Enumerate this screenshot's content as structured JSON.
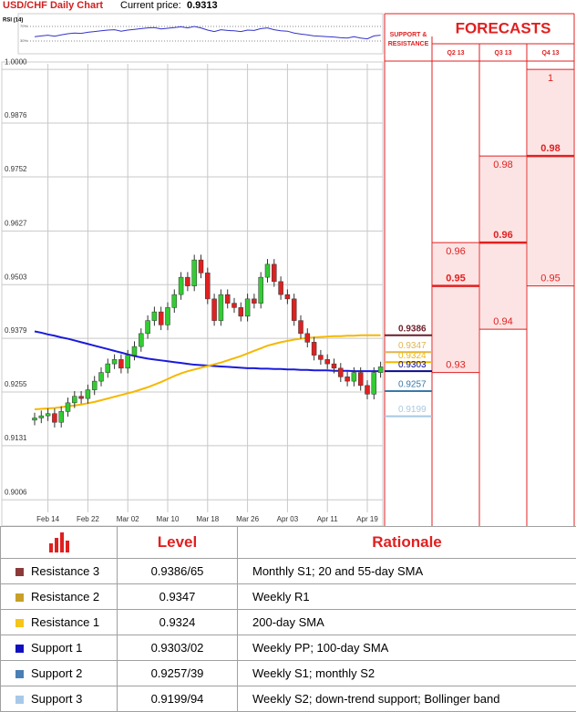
{
  "header": {
    "title": "USD/CHF Daily Chart",
    "price_label": "Current price:",
    "price": "0.9313"
  },
  "chart_data": [
    {
      "type": "candlestick",
      "categories": [
        null,
        null,
        "Feb 14",
        null,
        null,
        null,
        null,
        null,
        "Feb 22",
        null,
        null,
        null,
        null,
        null,
        "Mar 02",
        null,
        null,
        null,
        null,
        null,
        "Mar 10",
        null,
        null,
        null,
        null,
        null,
        "Mar 18",
        null,
        null,
        null,
        null,
        null,
        "Mar 26",
        null,
        null,
        null,
        null,
        null,
        "Apr 03",
        null,
        null,
        null,
        null,
        null,
        "Apr 11",
        null,
        null,
        null,
        null,
        null,
        "Apr 19",
        null,
        null
      ],
      "open": [
        0.919,
        0.9195,
        0.92,
        0.9205,
        0.9185,
        0.921,
        0.923,
        0.9245,
        0.924,
        0.926,
        0.928,
        0.93,
        0.932,
        0.933,
        0.931,
        0.934,
        0.936,
        0.939,
        0.942,
        0.944,
        0.941,
        0.945,
        0.948,
        0.952,
        0.95,
        0.956,
        0.953,
        0.947,
        0.942,
        0.948,
        0.946,
        0.945,
        0.943,
        0.947,
        0.946,
        0.952,
        0.955,
        0.951,
        0.948,
        0.947,
        0.942,
        0.939,
        0.937,
        0.934,
        0.933,
        0.932,
        0.931,
        0.929,
        0.928,
        0.93,
        0.927,
        0.925,
        0.93
      ],
      "high": [
        0.9207,
        0.9212,
        0.9217,
        0.9217,
        0.9222,
        0.9242,
        0.9257,
        0.9257,
        0.9272,
        0.9292,
        0.9312,
        0.9332,
        0.9342,
        0.9342,
        0.9352,
        0.9372,
        0.9402,
        0.9432,
        0.9452,
        0.9452,
        0.9462,
        0.9492,
        0.9532,
        0.9532,
        0.9572,
        0.9572,
        0.9542,
        0.9482,
        0.9492,
        0.9492,
        0.9472,
        0.9462,
        0.9482,
        0.9482,
        0.9532,
        0.9562,
        0.9562,
        0.9522,
        0.9492,
        0.9482,
        0.9432,
        0.9402,
        0.9382,
        0.9352,
        0.9342,
        0.9332,
        0.9322,
        0.9302,
        0.9312,
        0.9312,
        0.9282,
        0.9312,
        0.9325
      ],
      "low": [
        0.9178,
        0.9183,
        0.9188,
        0.9173,
        0.9173,
        0.9198,
        0.9218,
        0.9228,
        0.9228,
        0.9248,
        0.9268,
        0.9288,
        0.9308,
        0.9298,
        0.9298,
        0.9328,
        0.9348,
        0.9378,
        0.9408,
        0.9398,
        0.9398,
        0.9438,
        0.9468,
        0.9488,
        0.9488,
        0.9518,
        0.9458,
        0.9408,
        0.9408,
        0.9448,
        0.9438,
        0.9418,
        0.9418,
        0.9448,
        0.9448,
        0.9508,
        0.9498,
        0.9468,
        0.9458,
        0.9408,
        0.9378,
        0.9358,
        0.9328,
        0.9318,
        0.9308,
        0.9298,
        0.9278,
        0.9268,
        0.9268,
        0.9258,
        0.9238,
        0.9238,
        0.9288
      ],
      "close": [
        0.9195,
        0.92,
        0.9205,
        0.9185,
        0.921,
        0.923,
        0.9245,
        0.924,
        0.926,
        0.928,
        0.93,
        0.932,
        0.933,
        0.931,
        0.934,
        0.936,
        0.939,
        0.942,
        0.944,
        0.941,
        0.945,
        0.948,
        0.952,
        0.95,
        0.956,
        0.953,
        0.947,
        0.942,
        0.948,
        0.946,
        0.945,
        0.943,
        0.947,
        0.946,
        0.952,
        0.955,
        0.951,
        0.948,
        0.947,
        0.942,
        0.939,
        0.937,
        0.934,
        0.933,
        0.932,
        0.931,
        0.929,
        0.928,
        0.93,
        0.927,
        0.925,
        0.93,
        0.9313
      ],
      "up_color": "#33cc33",
      "down_color": "#e02020",
      "ylim": [
        0.8977,
        1.0013
      ],
      "yticks": [
        {
          "value": 1,
          "label": "1.0000"
        },
        0.9876,
        0.9752,
        0.9627,
        0.9503,
        0.9379,
        0.9255,
        0.9131,
        0.9006
      ],
      "grid": true,
      "lines": [
        {
          "color": "#1a1adb",
          "values": [
            0.9395,
            0.9392,
            0.9388,
            0.9385,
            0.9381,
            0.9378,
            0.9374,
            0.937,
            0.9366,
            0.9362,
            0.9358,
            0.9354,
            0.935,
            0.9346,
            0.9342,
            0.9338,
            0.9335,
            0.9332,
            0.933,
            0.9328,
            0.9326,
            0.9324,
            0.9322,
            0.932,
            0.9318,
            0.9317,
            0.9316,
            0.9315,
            0.9314,
            0.9313,
            0.9312,
            0.9311,
            0.931,
            0.931,
            0.9309,
            0.9309,
            0.9308,
            0.9308,
            0.9307,
            0.9307,
            0.9306,
            0.9306,
            0.9305,
            0.9305,
            0.9305,
            0.9304,
            0.9304,
            0.9304,
            0.9303,
            0.9303,
            0.9303,
            0.9303,
            0.9303
          ]
        },
        {
          "color": "#f5b800",
          "values": [
            0.9215,
            0.9216,
            0.9217,
            0.9218,
            0.922,
            0.9222,
            0.9224,
            0.9226,
            0.9229,
            0.9232,
            0.9236,
            0.924,
            0.9244,
            0.9248,
            0.9252,
            0.9256,
            0.9261,
            0.9266,
            0.9272,
            0.9278,
            0.9285,
            0.9292,
            0.9298,
            0.9303,
            0.9307,
            0.9311,
            0.9315,
            0.9319,
            0.9323,
            0.9328,
            0.9333,
            0.9338,
            0.9344,
            0.935,
            0.9356,
            0.9362,
            0.9366,
            0.937,
            0.9373,
            0.9376,
            0.9378,
            0.938,
            0.9381,
            0.9382,
            0.9383,
            0.9384,
            0.9384,
            0.9385,
            0.9385,
            0.9386,
            0.9386,
            0.9386,
            0.9386
          ]
        }
      ],
      "levels_title": [
        "SUPPORT &",
        "RESISTANCE"
      ],
      "levels": [
        {
          "value": 0.9386,
          "color": "#6b1f2a"
        },
        {
          "value": 0.9347,
          "color": "#e0b450"
        },
        {
          "value": 0.9324,
          "color": "#f0b800"
        },
        {
          "value": 0.9303,
          "color": "#0a0a8a"
        },
        {
          "value": 0.9257,
          "color": "#3a78a8"
        },
        {
          "value": 0.9199,
          "color": "#a8c8e0"
        }
      ],
      "forecasts_title": "FORECASTS",
      "forecasts": [
        {
          "label": "Q2 13",
          "high": 0.96,
          "mid": 0.95,
          "low": 0.93
        },
        {
          "label": "Q3 13",
          "high": 0.98,
          "mid": 0.96,
          "low": 0.94
        },
        {
          "label": "Q4 13",
          "high": 1,
          "mid": 0.98,
          "low": 0.95
        }
      ]
    },
    {
      "type": "line",
      "title": "RSI (14)",
      "values": [
        42,
        44,
        46,
        43,
        47,
        50,
        52,
        51,
        54,
        56,
        58,
        60,
        61,
        57,
        60,
        62,
        64,
        66,
        67,
        63,
        65,
        67,
        69,
        66,
        70,
        66,
        60,
        56,
        61,
        59,
        58,
        56,
        60,
        59,
        64,
        66,
        61,
        58,
        57,
        52,
        49,
        47,
        44,
        43,
        42,
        41,
        39,
        38,
        42,
        38,
        36,
        44,
        46
      ],
      "color": "#3333cc",
      "ylim": [
        0,
        100
      ],
      "yticks": [
        {
          "value": 30,
          "label": "30%"
        },
        {
          "value": 70,
          "label": "70%"
        }
      ]
    }
  ],
  "table": {
    "headers": [
      "Level",
      "Rationale"
    ],
    "rows": [
      {
        "color": "#8b3a3a",
        "cells": [
          "Resistance 3",
          "0.9386/65",
          "Monthly S1; 20 and 55-day SMA"
        ]
      },
      {
        "color": "#c8a028",
        "cells": [
          "Resistance 2",
          "0.9347",
          "Weekly R1"
        ]
      },
      {
        "color": "#f5c518",
        "cells": [
          "Resistance 1",
          "0.9324",
          "200-day SMA"
        ]
      },
      {
        "color": "#1010c0",
        "cells": [
          "Support 1",
          "0.9303/02",
          "Weekly PP; 100-day SMA"
        ]
      },
      {
        "color": "#4a7fb5",
        "cells": [
          "Support 2",
          "0.9257/39",
          "Weekly S1; monthly S2"
        ]
      },
      {
        "color": "#a8c8e8",
        "cells": [
          "Support 3",
          "0.9199/94",
          "Weekly S2; down-trend support; Bollinger band"
        ]
      }
    ]
  }
}
